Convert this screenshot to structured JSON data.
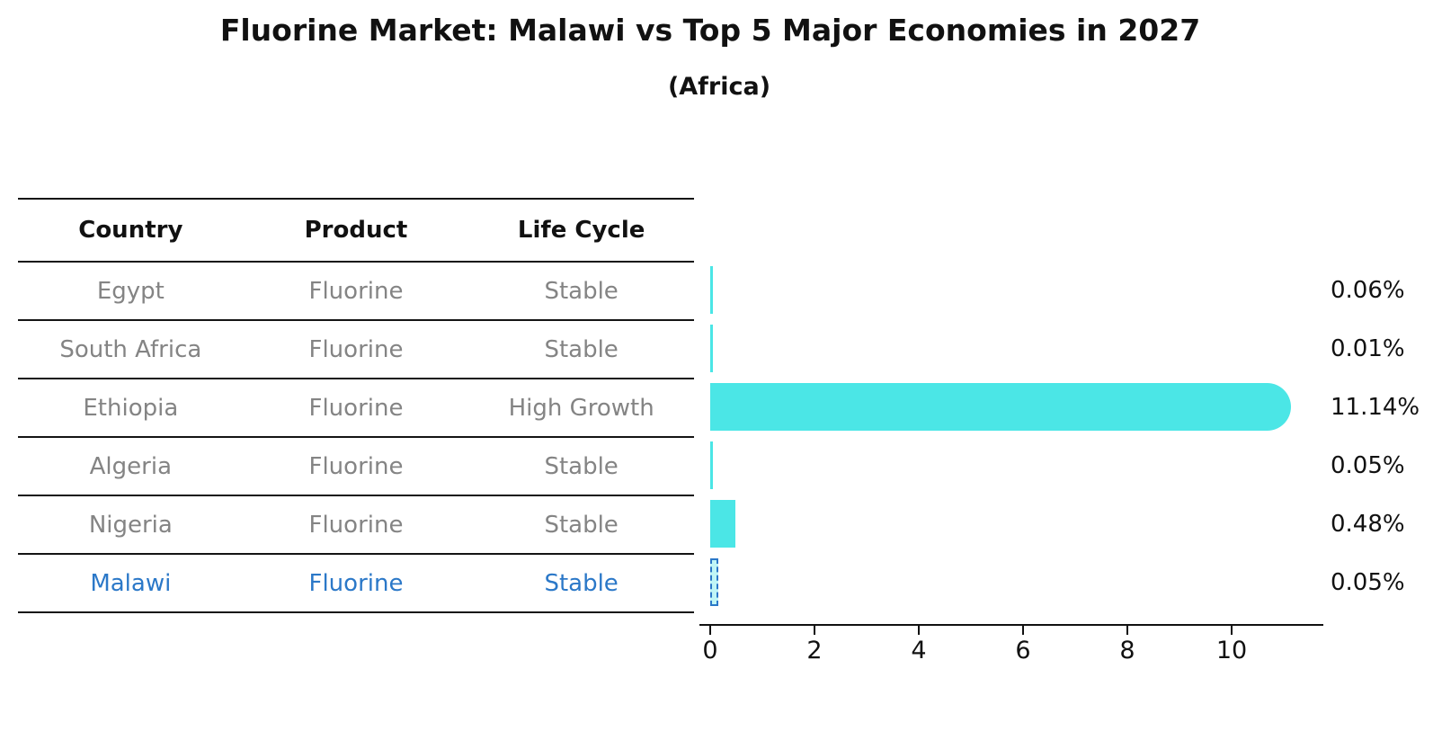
{
  "page": {
    "title": "Fluorine Market: Malawi vs Top 5 Major Economies in 2027",
    "subtitle": "(Africa)"
  },
  "table": {
    "columns": [
      "Country",
      "Product",
      "Life Cycle"
    ],
    "rows": [
      {
        "country": "Egypt",
        "product": "Fluorine",
        "life_cycle": "Stable",
        "highlighted": false
      },
      {
        "country": "South Africa",
        "product": "Fluorine",
        "life_cycle": "Stable",
        "highlighted": false
      },
      {
        "country": "Ethiopia",
        "product": "Fluorine",
        "life_cycle": "High Growth",
        "highlighted": false
      },
      {
        "country": "Algeria",
        "product": "Fluorine",
        "life_cycle": "Stable",
        "highlighted": false
      },
      {
        "country": "Nigeria",
        "product": "Fluorine",
        "life_cycle": "Stable",
        "highlighted": false
      },
      {
        "country": "Malawi",
        "product": "Fluorine",
        "life_cycle": "Stable",
        "highlighted": true
      }
    ]
  },
  "chart_data": {
    "type": "bar",
    "orientation": "horizontal",
    "title": "Fluorine Market: Malawi vs Top 5 Major Economies in 2027",
    "subtitle": "(Africa)",
    "categories": [
      "Egypt",
      "South Africa",
      "Ethiopia",
      "Algeria",
      "Nigeria",
      "Malawi"
    ],
    "values": [
      0.06,
      0.01,
      11.14,
      0.05,
      0.48,
      0.05
    ],
    "value_labels": [
      "0.06%",
      "0.01%",
      "11.14%",
      "0.05%",
      "0.48%",
      "0.05%"
    ],
    "unit": "percent",
    "highlight_index": 5,
    "x_tick_labels": [
      "0",
      "2",
      "4",
      "6",
      "8",
      "10"
    ],
    "x_tick_values": [
      0,
      2,
      4,
      6,
      8,
      10
    ],
    "xlim": [
      0,
      11.8
    ],
    "grid": false,
    "legend": false,
    "colors": {
      "bar": "#4BE6E6",
      "highlight": "#2B78C8",
      "label_text": "#111111",
      "table_text": "#848484"
    }
  }
}
